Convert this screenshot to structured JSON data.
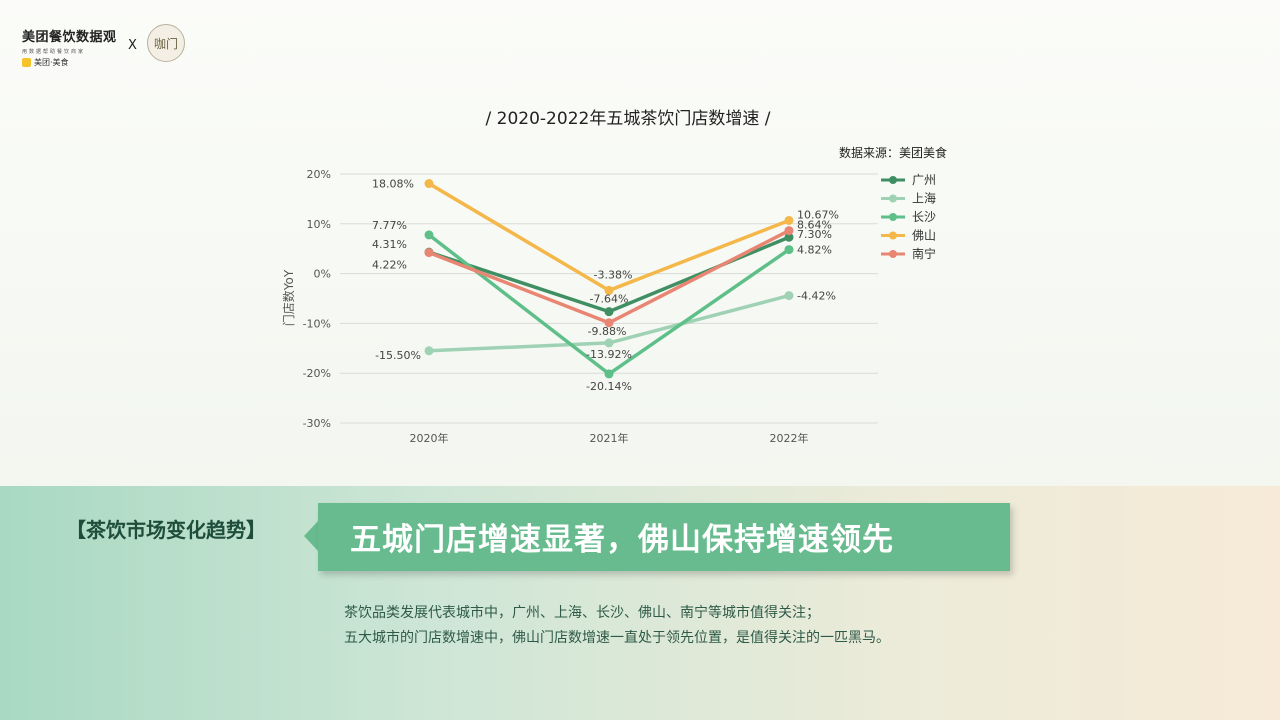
{
  "header": {
    "brand_title": "美团餐饮数据观",
    "brand_tagline": "用数据帮助餐饮商家",
    "brand_sub": "美团·美食",
    "cross": "X",
    "partner_logo_text": "咖门"
  },
  "chart_data": {
    "type": "line",
    "title": "/ 2020-2022年五城茶饮门店数增速 /",
    "source": "数据来源：美团美食",
    "ylabel": "门店数YoY",
    "xlabel": "",
    "categories": [
      "2020年",
      "2021年",
      "2022年"
    ],
    "ylim": [
      -30,
      20
    ],
    "yticks": [
      20,
      10,
      0,
      -10,
      -20,
      -30
    ],
    "ytick_labels": [
      "20%",
      "10%",
      "0%",
      "-10%",
      "-20%",
      "-30%"
    ],
    "grid": true,
    "legend_position": "right",
    "series": [
      {
        "name": "广州",
        "color": "#3f8f63",
        "values": [
          4.31,
          -7.64,
          7.3
        ],
        "labels": [
          "4.31%",
          "-7.64%",
          "7.30%"
        ]
      },
      {
        "name": "上海",
        "color": "#9fd2b5",
        "values": [
          -15.5,
          -13.92,
          -4.42
        ],
        "labels": [
          "-15.50%",
          "-13.92%",
          "-4.42%"
        ]
      },
      {
        "name": "长沙",
        "color": "#5fbf89",
        "values": [
          7.77,
          -20.14,
          4.82
        ],
        "labels": [
          "7.77%",
          "-20.14%",
          "4.82%"
        ]
      },
      {
        "name": "佛山",
        "color": "#f4b74a",
        "values": [
          18.08,
          -3.38,
          10.67
        ],
        "labels": [
          "18.08%",
          "-3.38%",
          "10.67%"
        ]
      },
      {
        "name": "南宁",
        "color": "#e98673",
        "values": [
          4.22,
          -9.88,
          8.64
        ],
        "labels": [
          "4.22%",
          "-9.88%",
          "8.64%"
        ]
      }
    ]
  },
  "bottom": {
    "trend_label": "【茶饮市场变化趋势】",
    "headline": "五城门店增速显著，佛山保持增速领先",
    "desc_line1": "茶饮品类发展代表城市中，广州、上海、长沙、佛山、南宁等城市值得关注；",
    "desc_line2": "五大城市的门店数增速中，佛山门店数增速一直处于领先位置，是值得关注的一匹黑马。"
  }
}
